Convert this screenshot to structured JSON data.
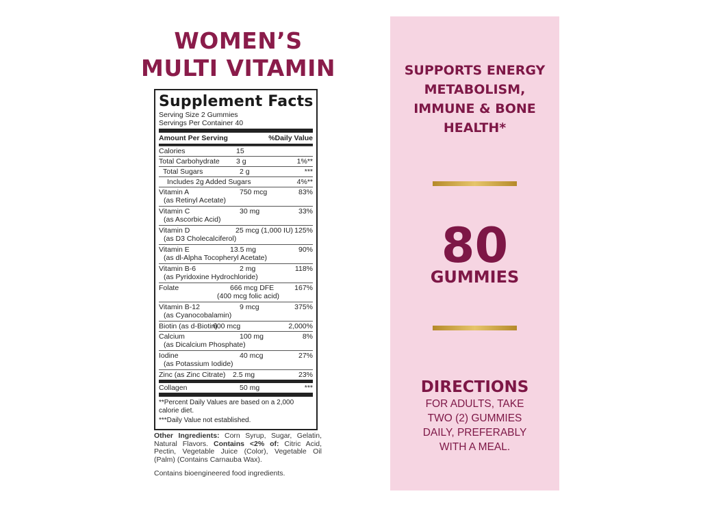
{
  "product": {
    "title_line1": "WOMEN’S",
    "title_line2": "MULTI VITAMIN"
  },
  "supplement_facts": {
    "title": "Supplement Facts",
    "serving_size": "Serving Size 2 Gummies",
    "servings_per_container": "Servings Per Container 40",
    "amount_header": "Amount Per Serving",
    "dv_header": "%Daily Value",
    "rows": [
      {
        "name": "Calories",
        "sub": "",
        "amount": "15",
        "dv": ""
      },
      {
        "name": "Total Carbohydrate",
        "sub": "",
        "amount": "3 g",
        "dv": "1%**"
      },
      {
        "name": "Total Sugars",
        "sub": "",
        "amount": "2 g",
        "dv": "***"
      },
      {
        "name": "Includes 2g Added Sugars",
        "sub": "",
        "amount": "",
        "dv": "4%**"
      },
      {
        "name": "Vitamin A",
        "sub": "(as Retinyl Acetate)",
        "amount": "750 mcg",
        "dv": "83%"
      },
      {
        "name": "Vitamin C",
        "sub": "(as Ascorbic Acid)",
        "amount": "30 mg",
        "dv": "33%"
      },
      {
        "name": "Vitamin D",
        "sub": "(as D3 Cholecalciferol)",
        "amount": "25 mcg (1,000 IU)",
        "dv": "125%"
      },
      {
        "name": "Vitamin E",
        "sub": "(as dl-Alpha Tocopheryl Acetate)",
        "amount": "13.5 mg",
        "dv": "90%"
      },
      {
        "name": "Vitamin B-6",
        "sub": "(as Pyridoxine Hydrochloride)",
        "amount": "2 mg",
        "dv": "118%"
      },
      {
        "name": "Folate",
        "sub": "(400 mcg folic acid)",
        "amount": "666 mcg DFE",
        "dv": "167%"
      },
      {
        "name": "Vitamin B-12",
        "sub": "(as Cyanocobalamin)",
        "amount": "9 mcg",
        "dv": "375%"
      },
      {
        "name": "Biotin (as d-Biotin)",
        "sub": "",
        "amount": "600 mcg",
        "dv": "2,000%"
      },
      {
        "name": "Calcium",
        "sub": "(as Dicalcium Phosphate)",
        "amount": "100 mg",
        "dv": "8%"
      },
      {
        "name": "Iodine",
        "sub": "(as Potassium Iodide)",
        "amount": "40 mcg",
        "dv": "27%"
      },
      {
        "name": "Zinc (as Zinc Citrate)",
        "sub": "",
        "amount": "2.5 mg",
        "dv": "23%"
      },
      {
        "name": "Collagen",
        "sub": "",
        "amount": "50 mg",
        "dv": "***"
      }
    ],
    "footnote1": "**Percent Daily Values are based on a 2,000 calorie diet.",
    "footnote2": "***Daily Value not established."
  },
  "ingredients": {
    "label": "Other Ingredients:",
    "text1": " Corn Syrup, Sugar, Gelatin, Natural Flavors. ",
    "contains_label": "Contains <2% of:",
    "text2": " Citric Acid, Pectin, Vegetable Juice (Color), Vegetable Oil (Palm) (Contains Carnauba Wax).",
    "bioengineered": "Contains bioengineered food ingredients."
  },
  "panel": {
    "claim_lines": [
      "SUPPORTS ENERGY",
      "METABOLISM,",
      "IMMUNE & BONE",
      "HEALTH*"
    ],
    "count": "80",
    "count_label": "GUMMIES",
    "directions_title": "DIRECTIONS",
    "directions_lines": [
      "FOR ADULTS, TAKE",
      "TWO (2) GUMMIES",
      "DAILY, PREFERABLY",
      "WITH A MEAL."
    ]
  },
  "colors": {
    "brand": "#8a1c4a",
    "panel_bg": "#f6d5e2",
    "gold": "#d4af4f"
  }
}
